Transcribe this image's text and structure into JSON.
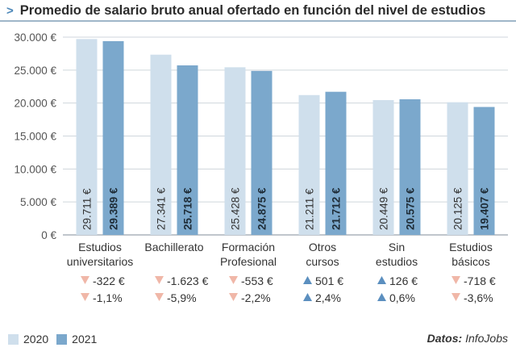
{
  "title": {
    "caret": ">",
    "text": "Promedio de salario bruto anual ofertado en función del nivel de estudios"
  },
  "colors": {
    "s2020": "#cfdfec",
    "s2021": "#7ba8cc",
    "up": "#5b8fbf",
    "down": "#f0b7a8",
    "grid": "#cfd6dc"
  },
  "chart_data": {
    "type": "bar",
    "title": "Promedio de salario bruto anual ofertado en función del nivel de estudios",
    "categories": [
      [
        "Estudios",
        "universitarios"
      ],
      [
        "Bachillerato"
      ],
      [
        "Formación",
        "Profesional"
      ],
      [
        "Otros",
        "cursos"
      ],
      [
        "Sin",
        "estudios"
      ],
      [
        "Estudios",
        "básicos"
      ]
    ],
    "series": [
      {
        "name": "2020",
        "values": [
          29711,
          27341,
          25428,
          21211,
          20449,
          20125
        ],
        "labels": [
          "29.711 €",
          "27.341 €",
          "25.428 €",
          "21.211 €",
          "20.449 €",
          "20.125 €"
        ]
      },
      {
        "name": "2021",
        "values": [
          29389,
          25718,
          24875,
          21712,
          20575,
          19407
        ],
        "labels": [
          "29.389 €",
          "25.718 €",
          "24.875 €",
          "21.712 €",
          "20.575 €",
          "19.407 €"
        ]
      }
    ],
    "yticks": [
      "0 €",
      "5.000 €",
      "10.000 €",
      "15.000 €",
      "20.000 €",
      "25.000 €",
      "30.000 €"
    ],
    "ylim": [
      0,
      30000
    ],
    "changes_abs": [
      {
        "dir": "down",
        "text": "-322 €"
      },
      {
        "dir": "down",
        "text": "-1.623 €"
      },
      {
        "dir": "down",
        "text": "-553 €"
      },
      {
        "dir": "up",
        "text": "501 €"
      },
      {
        "dir": "up",
        "text": "126 €"
      },
      {
        "dir": "down",
        "text": "-718 €"
      }
    ],
    "changes_pct": [
      {
        "dir": "down",
        "text": "-1,1%"
      },
      {
        "dir": "down",
        "text": "-5,9%"
      },
      {
        "dir": "down",
        "text": "-2,2%"
      },
      {
        "dir": "up",
        "text": "2,4%"
      },
      {
        "dir": "up",
        "text": "0,6%"
      },
      {
        "dir": "down",
        "text": "-3,6%"
      }
    ],
    "legend": "bottom-left",
    "grid": true
  },
  "legend": {
    "label_2020": "2020",
    "label_2021": "2021"
  },
  "source": {
    "prefix": "Datos:",
    "name": "InfoJobs"
  }
}
